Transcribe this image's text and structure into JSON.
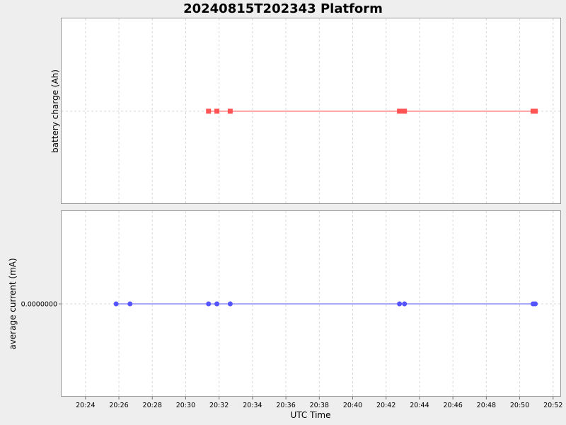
{
  "chart_data": {
    "title": "20240815T202343 Platform",
    "xlabel": "UTC Time",
    "x_ticks": [
      "20:24",
      "20:26",
      "20:28",
      "20:30",
      "20:32",
      "20:34",
      "20:36",
      "20:38",
      "20:40",
      "20:42",
      "20:44",
      "20:46",
      "20:48",
      "20:50",
      "20:52"
    ],
    "xlim": [
      "20:22:34",
      "20:52:26"
    ],
    "grid": true,
    "panels": [
      {
        "type": "line",
        "ylabel": "battery charge (Ah)",
        "y_ticks": [],
        "marker": "square",
        "color": "#ff5555",
        "series": [
          {
            "x": [
              "20:31:22",
              "20:31:52",
              "20:32:40",
              "20:42:48",
              "20:43:00",
              "20:43:06",
              "20:50:48",
              "20:50:56"
            ],
            "y": [
              0,
              0,
              0,
              0,
              0,
              0,
              0,
              0
            ]
          }
        ]
      },
      {
        "type": "line",
        "ylabel": "average current (mA)",
        "y_ticks": [
          "0.0000000"
        ],
        "marker": "circle",
        "color": "#5555ff",
        "series": [
          {
            "x": [
              "20:25:50",
              "20:26:40",
              "20:31:22",
              "20:31:52",
              "20:32:40",
              "20:42:48",
              "20:43:06",
              "20:50:48",
              "20:50:56"
            ],
            "y": [
              0,
              0,
              0,
              0,
              0,
              0,
              0,
              0,
              0
            ]
          }
        ]
      }
    ]
  }
}
